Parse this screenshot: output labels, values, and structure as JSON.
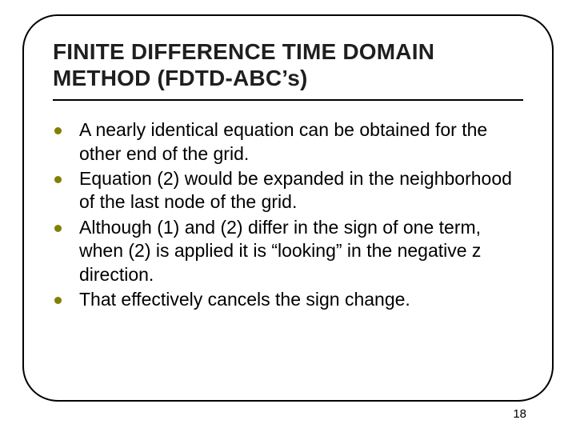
{
  "slide": {
    "title": "FINITE DIFFERENCE TIME DOMAIN METHOD (FDTD-ABC’s)",
    "title_color": "#1f1f1f",
    "title_fontsize": 28,
    "border_color": "#000000",
    "border_radius": 44,
    "background_color": "#ffffff",
    "bullet_color": "#808000",
    "bullet_fontsize": 23,
    "bullets": [
      {
        "text": "A nearly identical equation can be obtained for the other end of the grid."
      },
      {
        "text": "Equation (2) would be expanded in the neighborhood of the last node of the grid."
      },
      {
        "text": "Although (1) and (2) differ in the sign of one term, when (2) is applied it is “looking” in the negative z direction."
      },
      {
        "text": "That effectively cancels the sign change."
      }
    ],
    "page_number": "18"
  }
}
